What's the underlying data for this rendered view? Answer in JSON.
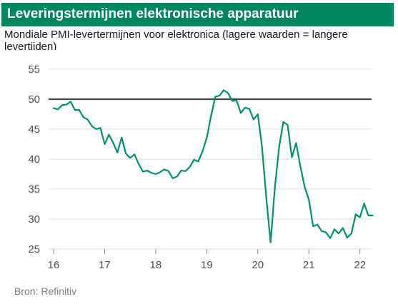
{
  "title": "Leveringstermijnen elektronische apparatuur",
  "subtitle": "Mondiale PMI-levertermijnen voor elektronica (lagere waarden = langere levertijden)",
  "source": "Bron: Refinitiv",
  "colors": {
    "brand": "#00875f",
    "line": "#00916e",
    "reference": "#404040",
    "grid": "#dddddd"
  },
  "chart_data": {
    "type": "line",
    "title": "Leveringstermijnen elektronische apparatuur",
    "xlabel": "",
    "ylabel": "",
    "xlim": [
      2016,
      2022.2
    ],
    "ylim": [
      25,
      55
    ],
    "y_ticks": [
      25,
      30,
      35,
      40,
      45,
      50,
      55
    ],
    "x_ticks": [
      {
        "value": 2016,
        "label": "16"
      },
      {
        "value": 2017,
        "label": "17"
      },
      {
        "value": 2018,
        "label": "18"
      },
      {
        "value": 2019,
        "label": "19"
      },
      {
        "value": 2020,
        "label": "20"
      },
      {
        "value": 2021,
        "label": "21"
      },
      {
        "value": 2022,
        "label": "22"
      }
    ],
    "grid": "horizontal",
    "reference_line": 50,
    "series": [
      {
        "x": [
          2016.0,
          2016.083,
          2016.167,
          2016.25,
          2016.333,
          2016.417,
          2016.5,
          2016.583,
          2016.667,
          2016.75,
          2016.833,
          2016.917,
          2017.0,
          2017.083,
          2017.167,
          2017.25,
          2017.333,
          2017.417,
          2017.5,
          2017.583,
          2017.667,
          2017.75,
          2017.833,
          2017.917,
          2018.0,
          2018.083,
          2018.167,
          2018.25,
          2018.333,
          2018.417,
          2018.5,
          2018.583,
          2018.667,
          2018.75,
          2018.833,
          2018.917,
          2019.0,
          2019.083,
          2019.167,
          2019.25,
          2019.333,
          2019.417,
          2019.5,
          2019.583,
          2019.667,
          2019.75,
          2019.833,
          2019.917,
          2020.0,
          2020.083,
          2020.167,
          2020.25,
          2020.333,
          2020.417,
          2020.5,
          2020.583,
          2020.667,
          2020.75,
          2020.833,
          2020.917,
          2021.0,
          2021.083,
          2021.167,
          2021.25,
          2021.333,
          2021.417,
          2021.5,
          2021.583,
          2021.667,
          2021.75,
          2021.833,
          2021.917,
          2022.0,
          2022.083,
          2022.167,
          2022.25
        ],
        "values": [
          48.5,
          48.3,
          49.0,
          49.1,
          49.6,
          48.2,
          48.2,
          47.0,
          46.6,
          45.5,
          45.0,
          45.2,
          42.5,
          44.1,
          42.7,
          41.1,
          43.6,
          40.9,
          40.2,
          40.8,
          39.2,
          37.9,
          38.1,
          37.7,
          37.5,
          37.8,
          38.3,
          38.0,
          36.8,
          37.1,
          38.1,
          38.0,
          38.7,
          39.9,
          39.6,
          41.3,
          43.6,
          47.2,
          50.4,
          50.6,
          51.5,
          51.0,
          49.7,
          49.8,
          47.7,
          48.6,
          48.4,
          46.6,
          47.5,
          42.0,
          33.5,
          26.1,
          35.2,
          42.0,
          46.2,
          45.7,
          40.3,
          42.7,
          38.8,
          35.4,
          33.2,
          28.8,
          29.1,
          28.0,
          27.8,
          26.8,
          28.3,
          27.6,
          28.5,
          26.9,
          27.6,
          30.8,
          30.3,
          32.6,
          30.6,
          30.6
        ]
      }
    ]
  }
}
